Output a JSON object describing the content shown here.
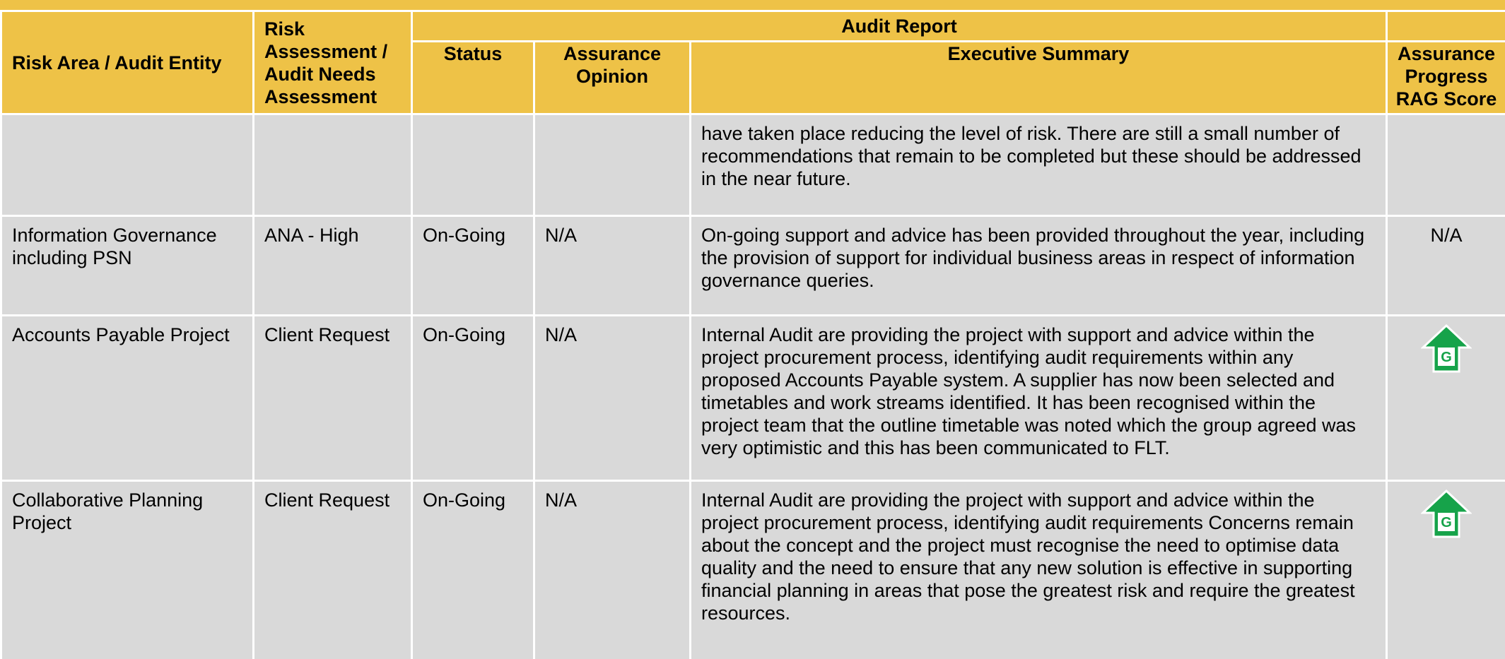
{
  "header": {
    "group": "Audit Report",
    "columns": [
      "Risk Area / Audit Entity",
      "Risk Assessment / Audit Needs Assessment",
      "Status",
      "Assurance Opinion",
      "Executive Summary",
      "Assurance Progress RAG Score"
    ]
  },
  "rows": [
    {
      "summary": "have taken place reducing the level of risk.  There are still a small number of recommendations that remain to be completed but these should be addressed in the near future."
    },
    {
      "entity": "Information Governance including PSN",
      "assessment": "ANA - High",
      "status": "On-Going",
      "opinion": "N/A",
      "summary": "On-going support and advice has been provided throughout the year, including the provision of support for individual business areas in respect of information governance queries.",
      "rag": "N/A"
    },
    {
      "entity": "Accounts Payable Project",
      "assessment": "Client Request",
      "status": "On-Going",
      "opinion": "N/A",
      "summary": "Internal Audit are providing the project with support and advice within the project procurement process, identifying audit requirements within any proposed Accounts Payable system. A supplier has now been selected and timetables and work streams identified. It has been recognised within the project team that the outline timetable was noted which the group agreed was very optimistic and this has been communicated to FLT.",
      "rag": "G"
    },
    {
      "entity": "Collaborative Planning Project",
      "assessment": "Client Request",
      "status": "On-Going",
      "opinion": "N/A",
      "summary": "Internal Audit are providing the project with support and advice within the project procurement process, identifying audit requirements Concerns remain about the concept and the project must recognise the need to optimise data quality and the need to ensure that any new solution is effective in supporting financial planning in areas that pose the greatest risk and require the greatest resources.",
      "rag": "G"
    }
  ]
}
